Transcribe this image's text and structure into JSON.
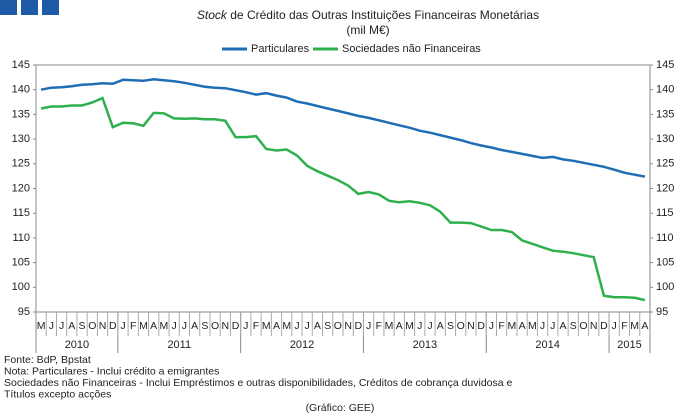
{
  "chart_data": {
    "type": "line",
    "title": [
      "Stock",
      " de Crédito das Outras Instituições Financeiras Monetárias"
    ],
    "subtitle": "(mil M€)",
    "categories": [
      "M",
      "J",
      "J",
      "A",
      "S",
      "O",
      "N",
      "D",
      "J",
      "F",
      "M",
      "A",
      "M",
      "J",
      "J",
      "A",
      "S",
      "O",
      "N",
      "D",
      "J",
      "F",
      "M",
      "A",
      "M",
      "J",
      "J",
      "A",
      "S",
      "O",
      "N",
      "D",
      "J",
      "F",
      "M",
      "A",
      "M",
      "J",
      "J",
      "A",
      "S",
      "O",
      "N",
      "D",
      "J",
      "F",
      "M",
      "A",
      "M",
      "J",
      "J",
      "A",
      "S",
      "O",
      "N",
      "D",
      "J",
      "F",
      "M",
      "A"
    ],
    "years": [
      "2010",
      "2011",
      "2012",
      "2013",
      "2014",
      "2015"
    ],
    "series": [
      {
        "name": "Particulares",
        "color": "#1f6eb5",
        "values": [
          140,
          140.4,
          140.5,
          140.7,
          141,
          141.1,
          141.3,
          141.2,
          142,
          141.9,
          141.8,
          142.1,
          141.9,
          141.7,
          141.4,
          141,
          140.6,
          140.4,
          140.3,
          139.9,
          139.5,
          139,
          139.3,
          138.8,
          138.4,
          137.6,
          137.2,
          136.7,
          136.2,
          135.7,
          135.2,
          134.7,
          134.3,
          133.8,
          133.3,
          132.8,
          132.3,
          131.7,
          131.3,
          130.8,
          130.3,
          129.8,
          129.2,
          128.7,
          128.3,
          127.8,
          127.4,
          127,
          126.6,
          126.2,
          126.4,
          125.9,
          125.6,
          125.2,
          124.8,
          124.4,
          123.8,
          123.2,
          122.8,
          122.4
        ]
      },
      {
        "name": "Sociedades não Financeiras",
        "color": "#2eb04e",
        "values": [
          136.2,
          136.6,
          136.6,
          136.8,
          136.8,
          137.4,
          138.3,
          132.4,
          133.3,
          133.2,
          132.7,
          135.3,
          135.2,
          134.2,
          134.1,
          134.2,
          134,
          134,
          133.7,
          130.4,
          130.4,
          130.6,
          128,
          127.7,
          127.9,
          126.7,
          124.6,
          123.5,
          122.6,
          121.7,
          120.6,
          118.9,
          119.3,
          118.8,
          117.5,
          117.2,
          117.4,
          117.1,
          116.6,
          115.3,
          113.1,
          113.1,
          113,
          112.3,
          111.6,
          111.6,
          111.2,
          109.5,
          108.8,
          108.1,
          107.4,
          107.2,
          106.9,
          106.5,
          106.1,
          98.3,
          98,
          98,
          97.9,
          97.4
        ]
      }
    ],
    "ylim": [
      95,
      145
    ],
    "yticks": [
      95,
      100,
      105,
      110,
      115,
      120,
      125,
      130,
      135,
      140,
      145
    ],
    "legend": "top",
    "notes": [
      "Fonte: BdP, Bpstat",
      "Nota: Particulares - Inclui crédito a emigrantes",
      "Sociedades não Financeiras - Inclui Empréstimos e outras disponibilidades, Créditos de cobrança duvidosa e",
      "Títulos excepto acções"
    ],
    "credit": "(Gráfico: GEE)"
  }
}
